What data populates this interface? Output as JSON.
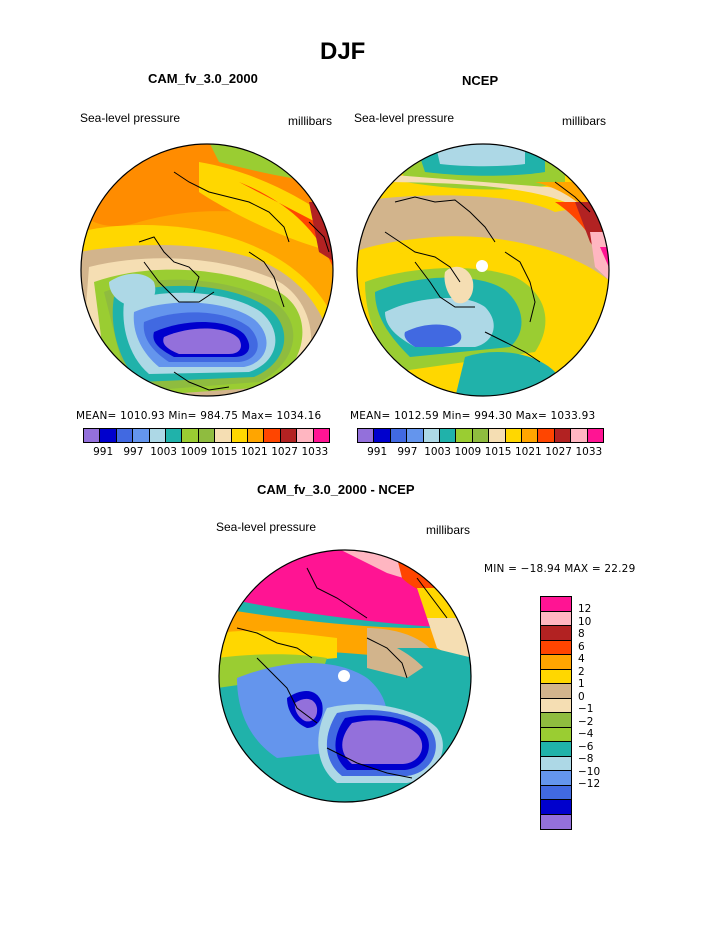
{
  "title": "DJF",
  "panels": [
    {
      "title": "CAM_fv_3.0_2000",
      "left_label": "Sea-level pressure",
      "right_label": "millibars",
      "stats": "MEAN= 1010.93   Min= 984.75   Max= 1034.16"
    },
    {
      "title": "NCEP",
      "left_label": "Sea-level pressure",
      "right_label": "millibars",
      "stats": "MEAN= 1012.59   Min= 994.30   Max= 1033.93"
    },
    {
      "title": "CAM_fv_3.0_2000 - NCEP",
      "left_label": "Sea-level pressure",
      "right_label": "millibars",
      "stats": "MIN = −18.94  MAX =  22.29"
    }
  ],
  "colorbar_abs": {
    "colors": [
      "#9370db",
      "#0000cd",
      "#4169e1",
      "#6495ed",
      "#add8e6",
      "#20b2aa",
      "#9acd32",
      "#8fbc3f",
      "#f5deb3",
      "#ffd700",
      "#ffa500",
      "#ff4500",
      "#b22222",
      "#ffb6c1",
      "#ff1493"
    ],
    "labels": [
      "991",
      "997",
      "1003",
      "1009",
      "1015",
      "1021",
      "1027",
      "1033"
    ]
  },
  "colorbar_diff": {
    "colors": [
      "#ff1493",
      "#ffb6c1",
      "#b22222",
      "#ff4500",
      "#ffa500",
      "#ffd700",
      "#d2b48c",
      "#f5deb3",
      "#8fbc3f",
      "#9acd32",
      "#20b2aa",
      "#add8e6",
      "#6495ed",
      "#4169e1",
      "#0000cd",
      "#9370db"
    ],
    "labels": [
      "12",
      "10",
      "8",
      "6",
      "4",
      "2",
      "1",
      "0",
      "−1",
      "−2",
      "−4",
      "−6",
      "−8",
      "−10",
      "−12"
    ]
  }
}
